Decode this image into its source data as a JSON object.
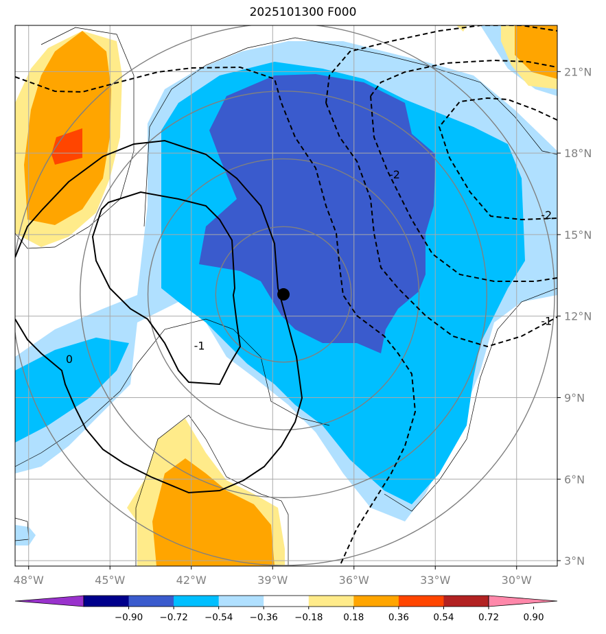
{
  "title": "2025101300 F000",
  "map": {
    "lon_range": [
      -48.5,
      -28.5
    ],
    "lat_range": [
      2.8,
      22.7
    ],
    "lon_ticks": [
      {
        "value": -48,
        "label": "48°W"
      },
      {
        "value": -45,
        "label": "45°W"
      },
      {
        "value": -42,
        "label": "42°W"
      },
      {
        "value": -39,
        "label": "39°W"
      },
      {
        "value": -36,
        "label": "36°W"
      },
      {
        "value": -33,
        "label": "33°W"
      },
      {
        "value": -30,
        "label": "30°W"
      }
    ],
    "lat_ticks": [
      {
        "value": 3,
        "label": "3°N"
      },
      {
        "value": 6,
        "label": "6°N"
      },
      {
        "value": 9,
        "label": "9°N"
      },
      {
        "value": 12,
        "label": "12°N"
      },
      {
        "value": 15,
        "label": "15°N"
      },
      {
        "value": 18,
        "label": "18°N"
      },
      {
        "value": 21,
        "label": "21°N"
      }
    ],
    "storm_center": {
      "lon": -38.6,
      "lat": 12.8
    },
    "range_rings_deg": [
      2.5,
      5,
      7.5,
      10
    ],
    "contour_labels": [
      {
        "text": "-2",
        "lon": -34.5,
        "lat": 17.2
      },
      {
        "text": "-2",
        "lon": -28.9,
        "lat": 15.7
      },
      {
        "text": "-1",
        "lon": -28.9,
        "lat": 11.8
      },
      {
        "text": "-1",
        "lon": -41.7,
        "lat": 10.9
      },
      {
        "text": "0",
        "lon": -46.5,
        "lat": 10.4
      }
    ]
  },
  "colorbar": {
    "colors": [
      "#9932cc",
      "#00008b",
      "#3a5bcd",
      "#00bfff",
      "#b0e0ff",
      "#ffffff",
      "#ffeb8a",
      "#ffa500",
      "#ff4500",
      "#b22222",
      "#ff88aa"
    ],
    "tick_labels": [
      "−0.90",
      "−0.72",
      "−0.54",
      "−0.36",
      "−0.18",
      "0.18",
      "0.36",
      "0.54",
      "0.72",
      "0.90"
    ]
  }
}
